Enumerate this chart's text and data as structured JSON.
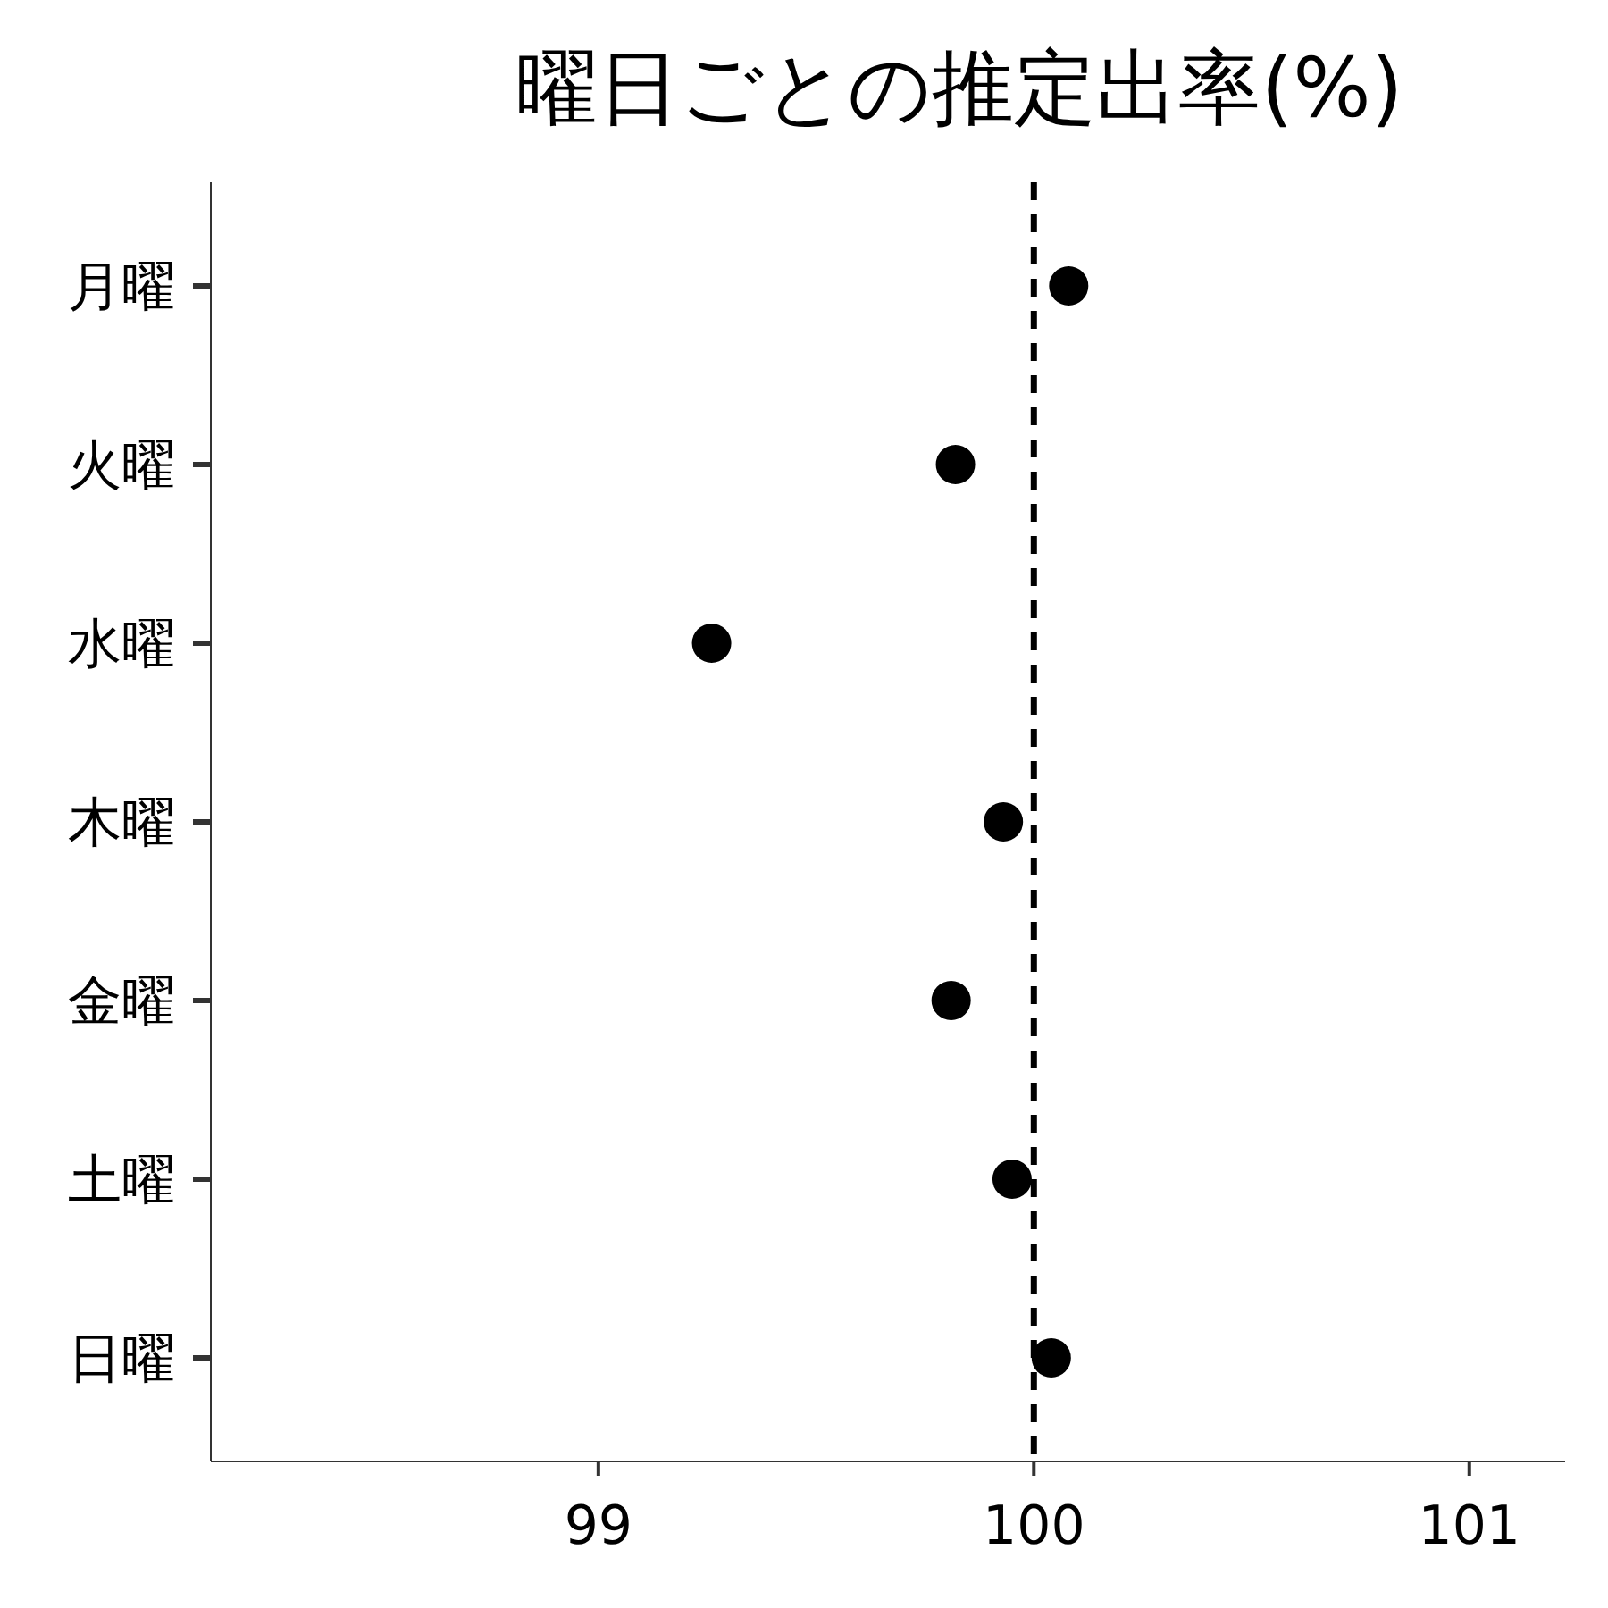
{
  "chart_data": {
    "type": "scatter",
    "title": "曜日ごとの推定出率(%)",
    "orientation": "horizontal",
    "categories": [
      "月曜",
      "火曜",
      "水曜",
      "木曜",
      "金曜",
      "土曜",
      "日曜"
    ],
    "series": [
      {
        "color": "#000000",
        "values": [
          100.08,
          99.82,
          99.26,
          99.93,
          99.81,
          99.95,
          100.04
        ]
      }
    ],
    "xlim": [
      98.11,
      101.22
    ],
    "xticks": [
      99,
      100,
      101
    ],
    "marker": "circle",
    "grid": false,
    "ref_lines": [
      {
        "axis": "x",
        "value": 100,
        "color": "#000000",
        "line_style": "dashed"
      }
    ]
  }
}
